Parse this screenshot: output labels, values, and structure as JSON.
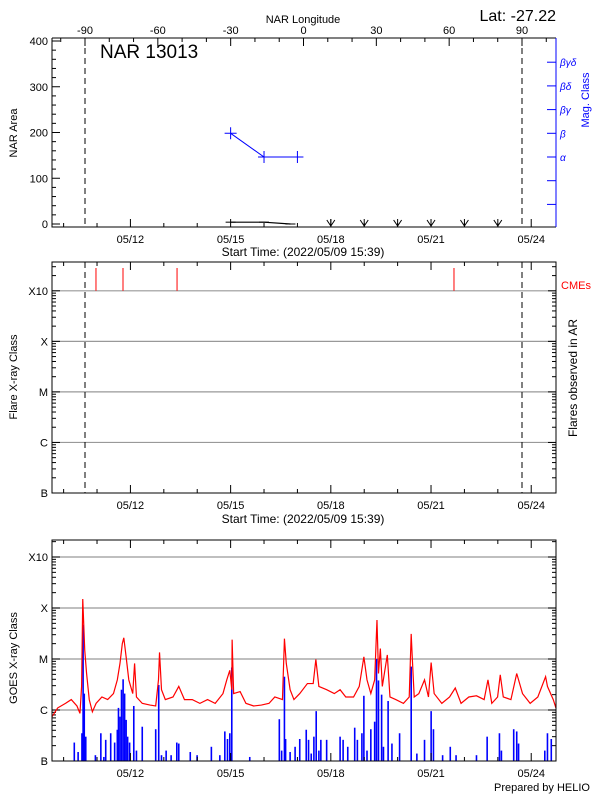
{
  "lat_label": "Lat: -27.22",
  "start_time_label": "Start Time: (2022/05/09 15:39)",
  "footer": "Prepared by HELIO",
  "colors": {
    "area": "#000000",
    "mag_class": "#0000ff",
    "cme": "#ff0000",
    "goes_flux": "#ff0000",
    "flare_events": "#0000ff",
    "grid": "#999999"
  },
  "time_axis": {
    "start": "05/09 15:39",
    "end": "05/24 17:45",
    "tick_labels": [
      "05/12",
      "05/15",
      "05/18",
      "05/21",
      "05/24"
    ]
  },
  "chart_data": [
    {
      "type": "line",
      "title": "NAR 13013",
      "ylabel": "NAR Area",
      "ylim": [
        0,
        400
      ],
      "yticks": [
        "0",
        "100",
        "200",
        "300",
        "400"
      ],
      "x2label": "NAR Longitude",
      "x2ticks": [
        "-90",
        "-60",
        "-30",
        "0",
        "30",
        "60",
        "90"
      ],
      "y2label": "Mag. Class",
      "y2ticks": [
        "α",
        "β",
        "βγ",
        "βδ",
        "βγδ"
      ],
      "limb_longitudes": [
        -90,
        90
      ],
      "area_series": [
        [
          "05/15 00:00",
          4
        ],
        [
          "05/16 00:00",
          4
        ],
        [
          "05/16 19:00",
          0
        ]
      ],
      "zero_markers": [
        "05/18 00:00",
        "05/19 00:00",
        "05/20 00:00",
        "05/21 00:00",
        "05/22 00:00",
        "05/23 00:00"
      ],
      "mag_class_series": [
        [
          "05/15 00:00",
          "β"
        ],
        [
          "05/16 00:00",
          "α"
        ],
        [
          "05/17 00:00",
          "α"
        ]
      ]
    },
    {
      "type": "scatter",
      "ylabel": "Flare X-ray Class",
      "y2label": "Flares observed in AR",
      "yticks": [
        "B",
        "C",
        "M",
        "X",
        "X10"
      ],
      "cme_label": "CMEs",
      "cmes": [
        "05/10 23:15",
        "05/11 18:40",
        "05/13 09:30",
        "05/21 16:30"
      ],
      "flares": []
    },
    {
      "type": "line",
      "ylabel": "GOES X-ray Class",
      "yticks": [
        "B",
        "C",
        "M",
        "X",
        "X10"
      ],
      "goes_flux": [
        [
          "05/09 15:39",
          "B7.4"
        ],
        [
          "05/09 19:45",
          "C1.1"
        ],
        [
          "05/10 01:20",
          "C1.35"
        ],
        [
          "05/10 05:30",
          "C1.6"
        ],
        [
          "05/10 09:35",
          "C1.2"
        ],
        [
          "05/10 11:45",
          "B8.6"
        ],
        [
          "05/10 12:55",
          "C2.9"
        ],
        [
          "05/10 13:45",
          "X1.5"
        ],
        [
          "05/10 15:10",
          "M1.5"
        ],
        [
          "05/10 16:30",
          "C5.2"
        ],
        [
          "05/10 18:25",
          "C1.6"
        ],
        [
          "05/10 20:40",
          "B9.2"
        ],
        [
          "05/10 23:20",
          "C1.35"
        ],
        [
          "05/11 03:30",
          "C1.8"
        ],
        [
          "05/11 07:40",
          "C1.6"
        ],
        [
          "05/11 11:50",
          "C2.1"
        ],
        [
          "05/11 14:35",
          "C3.9"
        ],
        [
          "05/11 16:30",
          "C8.2"
        ],
        [
          "05/11 18:10",
          "M2.0"
        ],
        [
          "05/11 19:15",
          "M2.6"
        ],
        [
          "05/11 20:55",
          "M1.1"
        ],
        [
          "05/11 22:50",
          "C3.9"
        ],
        [
          "05/12 01:40",
          "C2.1"
        ],
        [
          "05/12 03:00",
          "C8.2"
        ],
        [
          "05/12 04:20",
          "C1.8"
        ],
        [
          "05/12 08:30",
          "C1.35"
        ],
        [
          "05/12 14:05",
          "C1.25"
        ],
        [
          "05/12 18:10",
          "C1.2"
        ],
        [
          "05/12 20:10",
          "C3.9"
        ],
        [
          "05/12 20:55",
          "M1.35"
        ],
        [
          "05/12 22:20",
          "C2.5"
        ],
        [
          "05/13 01:05",
          "C1.6"
        ],
        [
          "05/13 06:35",
          "C1.8"
        ],
        [
          "05/13 10:45",
          "C2.9"
        ],
        [
          "05/13 14:50",
          "C1.6"
        ],
        [
          "05/13 20:25",
          "C1.6"
        ],
        [
          "05/14 01:55",
          "C1.35"
        ],
        [
          "05/14 07:25",
          "C1.6"
        ],
        [
          "05/14 12:55",
          "C1.35"
        ],
        [
          "05/14 18:30",
          "C2.1"
        ],
        [
          "05/14 21:15",
          "C3.9"
        ],
        [
          "05/14 23:25",
          "C6.0"
        ],
        [
          "05/15 00:50",
          "C2.5"
        ],
        [
          "05/15 01:05",
          "M2.4"
        ],
        [
          "05/15 02:10",
          "C2.1"
        ],
        [
          "05/15 06:50",
          "C2.3"
        ],
        [
          "05/15 11:00",
          "C1.35"
        ],
        [
          "05/15 16:35",
          "C1.2"
        ],
        [
          "05/15 22:05",
          "C1.25"
        ],
        [
          "05/16 03:35",
          "C1.35"
        ],
        [
          "05/16 07:45",
          "C1.8"
        ],
        [
          "05/16 13:15",
          "C1.6"
        ],
        [
          "05/16 14:40",
          "M2.5"
        ],
        [
          "05/16 16:00",
          "C8.2"
        ],
        [
          "05/16 18:45",
          "C2.5"
        ],
        [
          "05/16 21:30",
          "C1.6"
        ],
        [
          "05/17 01:40",
          "C2.1"
        ],
        [
          "05/17 07:10",
          "C3.3"
        ],
        [
          "05/17 11:20",
          "C3.3"
        ],
        [
          "05/17 13:15",
          "C9.8"
        ],
        [
          "05/17 15:25",
          "C2.9"
        ],
        [
          "05/17 21:00",
          "C2.5"
        ],
        [
          "05/18 02:30",
          "C2.1"
        ],
        [
          "05/18 06:40",
          "C2.5"
        ],
        [
          "05/18 10:45",
          "C1.8"
        ],
        [
          "05/18 16:20",
          "C1.8"
        ],
        [
          "05/18 20:25",
          "C2.9"
        ],
        [
          "05/18 23:45",
          "M1.1"
        ],
        [
          "05/19 02:00",
          "C3.9"
        ],
        [
          "05/19 04:45",
          "C2.1"
        ],
        [
          "05/19 07:30",
          "C3.9"
        ],
        [
          "05/19 09:10",
          "M5.8"
        ],
        [
          "05/19 10:15",
          "C5.2"
        ],
        [
          "05/19 11:35",
          "M1.6"
        ],
        [
          "05/19 13:00",
          "C2.9"
        ],
        [
          "05/19 16:35",
          "M1.2"
        ],
        [
          "05/19 18:30",
          "C1.8"
        ],
        [
          "05/19 22:40",
          "C1.6"
        ],
        [
          "05/20 04:10",
          "C1.35"
        ],
        [
          "05/20 08:20",
          "C1.8"
        ],
        [
          "05/20 09:45",
          "M3.1"
        ],
        [
          "05/20 10:30",
          "M1.1"
        ],
        [
          "05/20 11:55",
          "C1.8"
        ],
        [
          "05/20 15:15",
          "C2.1"
        ],
        [
          "05/20 19:20",
          "C3.9"
        ],
        [
          "05/20 22:10",
          "C1.8"
        ],
        [
          "05/21 00:05",
          "C8.5"
        ],
        [
          "05/21 02:15",
          "C2.1"
        ],
        [
          "05/21 07:45",
          "C1.35"
        ],
        [
          "05/21 13:20",
          "C1.8"
        ],
        [
          "05/21 17:25",
          "C2.7"
        ],
        [
          "05/21 21:35",
          "C1.35"
        ],
        [
          "05/22 03:10",
          "C1.8"
        ],
        [
          "05/22 08:40",
          "C1.9"
        ],
        [
          "05/22 14:10",
          "C1.6"
        ],
        [
          "05/22 16:55",
          "C3.9"
        ],
        [
          "05/22 19:40",
          "C1.35"
        ],
        [
          "05/22 23:50",
          "C1.8"
        ],
        [
          "05/23 01:45",
          "C4.9"
        ],
        [
          "05/23 03:55",
          "C1.8"
        ],
        [
          "05/23 09:25",
          "C1.6"
        ],
        [
          "05/23 13:35",
          "C5.2"
        ],
        [
          "05/23 17:45",
          "C2.1"
        ],
        [
          "05/23 23:15",
          "C1.35"
        ],
        [
          "05/24 04:45",
          "C1.8"
        ],
        [
          "05/24 10:20",
          "C4.5"
        ],
        [
          "05/24 11:40",
          "C2.9"
        ],
        [
          "05/24 15:50",
          "C1.6"
        ],
        [
          "05/24 17:45",
          "C1.1"
        ]
      ],
      "flare_events": [
        [
          "05/10 07:40",
          "B2.3"
        ],
        [
          "05/10 10:25",
          "B1.5"
        ],
        [
          "05/10 13:10",
          "B3.5"
        ],
        [
          "05/10 14:00",
          "M4.7"
        ],
        [
          "05/10 14:50",
          "C2.1"
        ],
        [
          "05/10 15:55",
          "B3.0"
        ],
        [
          "05/10 22:50",
          "B1.3"
        ],
        [
          "05/11 02:45",
          "B3.5"
        ],
        [
          "05/11 04:55",
          "B1.2"
        ],
        [
          "05/11 06:15",
          "B2.6"
        ],
        [
          "05/11 09:50",
          "B3.5"
        ],
        [
          "05/11 12:40",
          "B2.3"
        ],
        [
          "05/11 14:35",
          "B4.1"
        ],
        [
          "05/11 15:25",
          "C1.1"
        ],
        [
          "05/11 16:30",
          "B7.4"
        ],
        [
          "05/11 17:35",
          "C2.5"
        ],
        [
          "05/11 18:45",
          "C4.0"
        ],
        [
          "05/11 19:50",
          "C2.1"
        ],
        [
          "05/11 20:55",
          "B6.4"
        ],
        [
          "05/11 22:00",
          "B3.0"
        ],
        [
          "05/11 23:25",
          "B2.3"
        ],
        [
          "05/12 02:25",
          "C1.2"
        ],
        [
          "05/12 04:20",
          "B1.6"
        ],
        [
          "05/12 08:30",
          "B4.7"
        ],
        [
          "05/12 18:10",
          "B4.2"
        ],
        [
          "05/12 20:20",
          "C3.1"
        ],
        [
          "05/12 22:20",
          "B1.3"
        ],
        [
          "05/13 01:40",
          "B1.6"
        ],
        [
          "05/13 05:15",
          "B1.3"
        ],
        [
          "05/13 09:20",
          "B2.3"
        ],
        [
          "05/13 10:45",
          "B2.2"
        ],
        [
          "05/13 19:00",
          "B1.5"
        ],
        [
          "05/13 23:55",
          "B1.3"
        ],
        [
          "05/14 10:10",
          "B1.9"
        ],
        [
          "05/14 16:15",
          "B1.3"
        ],
        [
          "05/14 19:50",
          "B3.8"
        ],
        [
          "05/14 21:45",
          "B2.7"
        ],
        [
          "05/14 23:25",
          "B3.5"
        ],
        [
          "05/15 00:50",
          "C6.8"
        ],
        [
          "05/15 13:45",
          "B1.2"
        ],
        [
          "05/16 11:00",
          "B6.6"
        ],
        [
          "05/16 12:40",
          "B1.6"
        ],
        [
          "05/16 14:40",
          "C4.5"
        ],
        [
          "05/16 15:30",
          "B2.7"
        ],
        [
          "05/16 18:45",
          "B1.5"
        ],
        [
          "05/16 22:20",
          "B1.9"
        ],
        [
          "05/17 01:40",
          "B2.7"
        ],
        [
          "05/17 06:20",
          "B4.1"
        ],
        [
          "05/17 08:00",
          "B2.6"
        ],
        [
          "05/17 09:55",
          "B1.4"
        ],
        [
          "05/17 11:50",
          "B3.0"
        ],
        [
          "05/17 13:30",
          "B9.5"
        ],
        [
          "05/17 15:25",
          "B1.6"
        ],
        [
          "05/17 16:50",
          "B2.6"
        ],
        [
          "05/17 21:00",
          "B2.6"
        ],
        [
          "05/18 06:40",
          "B3.0"
        ],
        [
          "05/18 08:50",
          "B2.6"
        ],
        [
          "05/18 12:10",
          "B1.9"
        ],
        [
          "05/18 17:10",
          "B4.5"
        ],
        [
          "05/18 19:05",
          "B2.6"
        ],
        [
          "05/18 22:20",
          "B3.5"
        ],
        [
          "05/18 23:45",
          "C1.9"
        ],
        [
          "05/19 02:00",
          "B1.6"
        ],
        [
          "05/19 04:45",
          "B4.2"
        ],
        [
          "05/19 07:30",
          "B5.9"
        ],
        [
          "05/19 08:50",
          "M1.0"
        ],
        [
          "05/19 10:15",
          "C3.8"
        ],
        [
          "05/19 12:30",
          "C2.0"
        ],
        [
          "05/19 13:50",
          "B1.9"
        ],
        [
          "05/19 17:10",
          "C1.5"
        ],
        [
          "05/19 19:55",
          "B2.2"
        ],
        [
          "05/20 01:25",
          "B3.5"
        ],
        [
          "05/20 09:45",
          "C7.1"
        ],
        [
          "05/20 13:50",
          "B1.4"
        ],
        [
          "05/20 19:20",
          "B2.6"
        ],
        [
          "05/21 00:05",
          "B9.5"
        ],
        [
          "05/21 01:45",
          "B4.2"
        ],
        [
          "05/21 08:20",
          "B1.3"
        ],
        [
          "05/21 13:50",
          "B1.9"
        ],
        [
          "05/21 18:00",
          "B1.3"
        ],
        [
          "05/22 08:40",
          "B1.3"
        ],
        [
          "05/22 16:20",
          "B3.0"
        ],
        [
          "05/23 01:10",
          "B3.5"
        ],
        [
          "05/23 02:35",
          "B1.6"
        ],
        [
          "05/23 11:25",
          "B4.2"
        ],
        [
          "05/23 13:35",
          "B3.8"
        ],
        [
          "05/23 14:55",
          "B2.2"
        ],
        [
          "05/24 09:45",
          "B1.6"
        ],
        [
          "05/24 11:40",
          "B3.5"
        ],
        [
          "05/24 14:25",
          "B2.7"
        ]
      ]
    }
  ]
}
